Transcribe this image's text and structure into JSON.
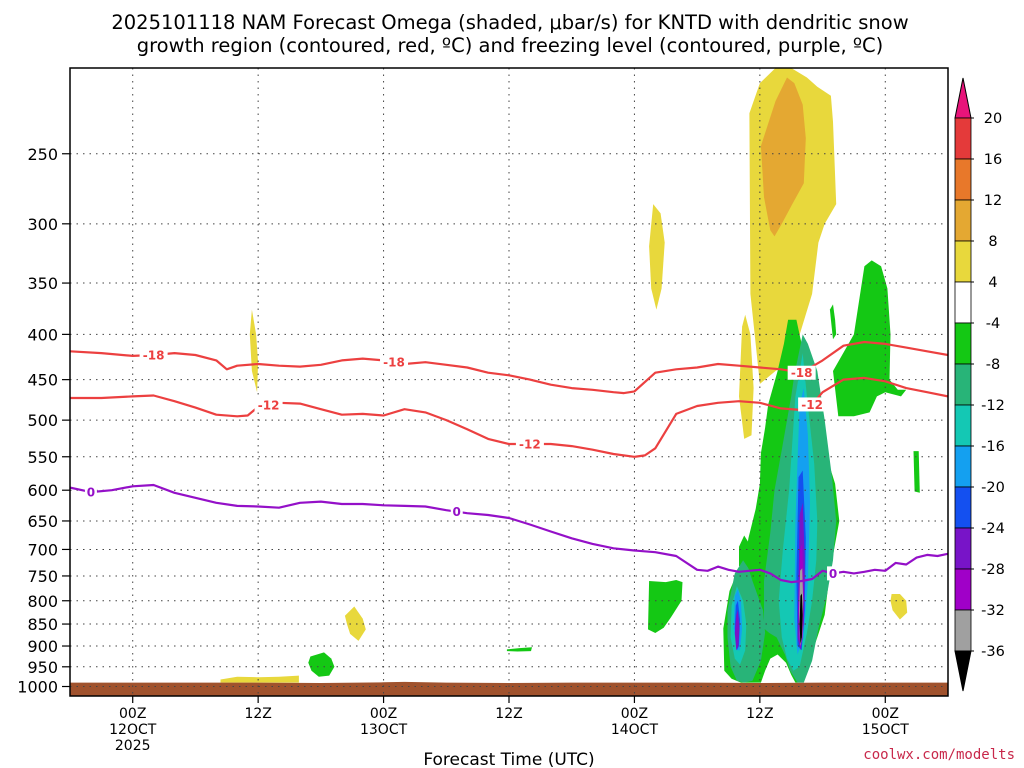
{
  "chart_data": {
    "type": "heatmap",
    "title_lines": [
      "2025101118 NAM Forecast Omega (shaded, μbar/s) for KNTD with dendritic snow",
      "growth region (contoured, red, ºC) and freezing level (contoured, purple, ºC)"
    ],
    "xlabel": "Forecast Time (UTC)",
    "ylabel": "",
    "credit": "coolwx.com/modelts",
    "x_axis": {
      "unit": "hours since 2025101118",
      "range": [
        0,
        84
      ],
      "ticks": [
        {
          "x": 6,
          "lines": [
            "00Z",
            "12OCT",
            "2025"
          ]
        },
        {
          "x": 18,
          "lines": [
            "12Z"
          ]
        },
        {
          "x": 30,
          "lines": [
            "00Z",
            "13OCT"
          ]
        },
        {
          "x": 42,
          "lines": [
            "12Z"
          ]
        },
        {
          "x": 54,
          "lines": [
            "00Z",
            "14OCT"
          ]
        },
        {
          "x": 66,
          "lines": [
            "12Z"
          ]
        },
        {
          "x": 78,
          "lines": [
            "00Z",
            "15OCT"
          ]
        }
      ]
    },
    "y_axis": {
      "unit": "hPa",
      "scale": "log",
      "range": [
        200,
        1025
      ],
      "ticks": [
        250,
        300,
        350,
        400,
        450,
        500,
        550,
        600,
        650,
        700,
        750,
        800,
        850,
        900,
        950,
        1000
      ],
      "gridlines": true
    },
    "colorbar": {
      "labels": [
        "20",
        "16",
        "12",
        "8",
        "4",
        "-4",
        "-8",
        "-12",
        "-16",
        "-20",
        "-24",
        "-28",
        "-32",
        "-36"
      ],
      "colors": [
        "#e8147a",
        "#e43a3a",
        "#e8782a",
        "#e4a832",
        "#e8d83c",
        "#ffffff",
        "#14c814",
        "#28b478",
        "#14c8b4",
        "#14a0f0",
        "#1450f0",
        "#7814c8",
        "#a000c8",
        "#a0a0a0",
        "#000000"
      ]
    },
    "series": [
      {
        "name": "-18 ºC isotherm",
        "label": "-18",
        "color": "#ec4040",
        "x": [
          0,
          3,
          6,
          8,
          10,
          12,
          14,
          15,
          16,
          18,
          20,
          22,
          24,
          26,
          28,
          30,
          32,
          34,
          36,
          38,
          40,
          42,
          44,
          46,
          48,
          50,
          52,
          53,
          54,
          56,
          58,
          60,
          62,
          64,
          66,
          68,
          70,
          72,
          74,
          76,
          78,
          80,
          82,
          84
        ],
        "y": [
          418,
          420,
          423,
          422,
          420,
          422,
          428,
          438,
          434,
          432,
          434,
          435,
          433,
          428,
          426,
          428,
          432,
          430,
          433,
          436,
          442,
          445,
          450,
          456,
          460,
          462,
          465,
          466,
          464,
          442,
          438,
          436,
          432,
          434,
          436,
          438,
          442,
          428,
          412,
          408,
          410,
          414,
          418,
          422
        ]
      },
      {
        "name": "-12 ºC isotherm",
        "label": "-12",
        "color": "#ec4040",
        "x": [
          0,
          3,
          6,
          8,
          10,
          12,
          14,
          16,
          17,
          18,
          20,
          22,
          24,
          26,
          28,
          30,
          32,
          34,
          36,
          38,
          40,
          42,
          44,
          46,
          48,
          50,
          52,
          54,
          55,
          56,
          58,
          60,
          62,
          64,
          66,
          68,
          70,
          71,
          72,
          74,
          76,
          78,
          80,
          82,
          84
        ],
        "y": [
          472,
          472,
          470,
          469,
          476,
          484,
          493,
          495,
          494,
          483,
          478,
          479,
          486,
          493,
          492,
          494,
          486,
          490,
          500,
          512,
          525,
          532,
          532,
          532,
          535,
          540,
          546,
          550,
          548,
          538,
          492,
          482,
          478,
          476,
          478,
          485,
          487,
          480,
          465,
          450,
          448,
          452,
          460,
          465,
          470
        ]
      },
      {
        "name": "0 ºC freezing level",
        "label": "0",
        "color": "#9410c8",
        "x": [
          0,
          2,
          4,
          6,
          8,
          10,
          12,
          14,
          16,
          18,
          20,
          22,
          24,
          26,
          28,
          30,
          32,
          34,
          36,
          38,
          40,
          42,
          44,
          46,
          48,
          50,
          52,
          54,
          56,
          58,
          60,
          61,
          62,
          63,
          64,
          65,
          66,
          67,
          68,
          69,
          70,
          71,
          72,
          73,
          74,
          75,
          76,
          77,
          78,
          79,
          80,
          81,
          82,
          83,
          84
        ],
        "y": [
          596,
          603,
          600,
          594,
          592,
          604,
          612,
          620,
          625,
          626,
          628,
          620,
          618,
          622,
          622,
          624,
          625,
          626,
          632,
          637,
          640,
          645,
          656,
          668,
          680,
          690,
          698,
          702,
          705,
          712,
          738,
          740,
          732,
          738,
          742,
          740,
          738,
          745,
          758,
          762,
          760,
          756,
          740,
          745,
          742,
          745,
          742,
          738,
          740,
          725,
          728,
          715,
          710,
          712,
          708
        ]
      }
    ],
    "omega_regions": [
      {
        "value": 4,
        "color": "#e8d83c",
        "x": [
          64.3,
          64.6,
          65.1,
          65.4,
          65.2,
          64.5,
          64.0
        ],
        "y": [
          392,
          380,
          400,
          460,
          520,
          525,
          470
        ]
      },
      {
        "value": 4,
        "color": "#e8d83c",
        "x": [
          17.2,
          17.4,
          17.8,
          18.0,
          17.9,
          17.4
        ],
        "y": [
          400,
          375,
          400,
          430,
          465,
          440
        ]
      },
      {
        "value": 4,
        "color": "#e8d83c",
        "x": [
          55.4,
          55.8,
          56.5,
          56.9,
          56.6,
          56.1,
          55.6
        ],
        "y": [
          318,
          285,
          292,
          315,
          355,
          375,
          355
        ]
      },
      {
        "value": 4,
        "color": "#e8d83c",
        "x": [
          65.0,
          66.0,
          67.5,
          69.0,
          70.5,
          71.5,
          72.8,
          73.0,
          73.3,
          72.2,
          71.6,
          71.0,
          69.0,
          67.5,
          66.0,
          65.1
        ],
        "y": [
          225,
          208,
          200,
          200,
          205,
          210,
          215,
          230,
          285,
          300,
          315,
          360,
          430,
          440,
          455,
          360
        ]
      },
      {
        "value": 4,
        "color": "#e8d83c",
        "x": [
          26.3,
          27.2,
          28.0,
          28.3,
          27.6,
          26.8,
          26.5
        ],
        "y": [
          832,
          812,
          838,
          862,
          888,
          872,
          850
        ]
      },
      {
        "value": 4,
        "color": "#e8d83c",
        "x": [
          14.4,
          16.0,
          18.0,
          20.0,
          21.9,
          21.9,
          18.0,
          16.0,
          14.4
        ],
        "y": [
          982,
          975,
          976,
          975,
          972,
          990,
          990,
          990,
          990
        ]
      },
      {
        "value": 4,
        "color": "#e8d83c",
        "x": [
          78.6,
          79.4,
          80.0,
          80.1,
          79.4,
          78.7,
          78.5
        ],
        "y": [
          786,
          786,
          800,
          825,
          840,
          820,
          800
        ]
      },
      {
        "value": 8,
        "color": "#e4a832",
        "x": [
          66.1,
          67.5,
          68.6,
          69.3,
          70.1,
          70.4,
          70.2,
          69.1,
          68.1,
          67.4,
          67.0,
          66.4
        ],
        "y": [
          245,
          218,
          205,
          208,
          220,
          240,
          270,
          285,
          300,
          310,
          305,
          280
        ]
      },
      {
        "value": -4,
        "color": "#14c814",
        "x": [
          76.0,
          76.7,
          77.6,
          78.2,
          78.5,
          78.4,
          79.2,
          80.0,
          79.5,
          78.0,
          77.2,
          76.5,
          75.0,
          73.5,
          73.0,
          75.0,
          76.0
        ],
        "y": [
          335,
          330,
          335,
          355,
          400,
          450,
          462,
          462,
          470,
          465,
          470,
          490,
          495,
          495,
          440,
          400,
          335
        ]
      },
      {
        "value": -4,
        "color": "#14c814",
        "x": [
          72.7,
          73.0,
          73.2,
          73.3,
          73.0,
          72.8
        ],
        "y": [
          375,
          370,
          385,
          400,
          405,
          385
        ]
      },
      {
        "value": -4,
        "color": "#14c814",
        "x": [
          66.8,
          67.7,
          68.3,
          68.7,
          69.5,
          69.9,
          70.5,
          71.0,
          72.0,
          72.5,
          73.2,
          73.6,
          73.1,
          72.6,
          72.2,
          71.5,
          70.8,
          70.3,
          69.6,
          69.4,
          69.0,
          68.5,
          67.7,
          67.0,
          66.5,
          66.1,
          65.6,
          64.9,
          64.2,
          63.3,
          62.6,
          62.5,
          63.1,
          63.8,
          64.6,
          64.9,
          65.6,
          66.0,
          66.1,
          66.5
        ],
        "y": [
          480,
          440,
          410,
          385,
          385,
          405,
          430,
          470,
          520,
          555,
          590,
          650,
          700,
          760,
          830,
          880,
          930,
          980,
          990,
          990,
          970,
          940,
          920,
          930,
          960,
          990,
          990,
          990,
          990,
          980,
          960,
          860,
          780,
          745,
          720,
          680,
          630,
          590,
          545,
          510
        ]
      },
      {
        "value": -4,
        "color": "#14c814",
        "x": [
          55.4,
          57.0,
          58.0,
          58.6,
          58.5,
          57.5,
          56.8,
          56.0,
          55.3
        ],
        "y": [
          760,
          762,
          758,
          762,
          800,
          835,
          858,
          870,
          862
        ]
      },
      {
        "value": -4,
        "color": "#14c814",
        "x": [
          64.0,
          64.5,
          65.0,
          65.4,
          65.3,
          64.6,
          64.0
        ],
        "y": [
          695,
          675,
          690,
          720,
          745,
          750,
          730
        ]
      },
      {
        "value": -4,
        "color": "#14c814",
        "x": [
          23.0,
          24.3,
          25.0,
          25.3,
          24.8,
          23.8,
          23.1,
          22.8
        ],
        "y": [
          925,
          915,
          930,
          950,
          972,
          975,
          960,
          940
        ]
      },
      {
        "value": -4,
        "color": "#14c814",
        "x": [
          41.8,
          43.0,
          44.2,
          44.1,
          42.8,
          41.8
        ],
        "y": [
          908,
          905,
          903,
          912,
          913,
          912
        ]
      },
      {
        "value": -4,
        "color": "#14c814",
        "x": [
          80.7,
          81.2,
          81.3,
          80.8
        ],
        "y": [
          542,
          542,
          604,
          602
        ]
      },
      {
        "value": -8,
        "color": "#28b478",
        "x": [
          69.3,
          70.1,
          70.6,
          71.5,
          72.2,
          72.9,
          73.3,
          73.0,
          72.4,
          71.6,
          71.0,
          70.2,
          69.6,
          68.9,
          68.4,
          67.6,
          66.9,
          66.4,
          66.4,
          67.0,
          67.4,
          68.1,
          68.6,
          69.0
        ],
        "y": [
          445,
          400,
          410,
          440,
          500,
          580,
          650,
          720,
          790,
          860,
          935,
          990,
          990,
          960,
          920,
          880,
          870,
          860,
          760,
          670,
          600,
          540,
          500,
          470
        ]
      },
      {
        "value": -8,
        "color": "#28b478",
        "x": [
          62.9,
          63.6,
          64.4,
          64.9,
          65.3,
          65.8,
          66.3,
          66.5,
          66.1,
          65.3,
          64.5,
          63.8,
          63.2,
          62.9
        ],
        "y": [
          820,
          745,
          720,
          735,
          760,
          790,
          820,
          870,
          935,
          985,
          990,
          985,
          950,
          880
        ]
      },
      {
        "value": -12,
        "color": "#14c8b4",
        "x": [
          69.4,
          70.1,
          70.5,
          71.2,
          71.5,
          71.4,
          71.0,
          70.5,
          69.8,
          69.2,
          68.6,
          68.1,
          67.8,
          68.2,
          68.8
        ],
        "y": [
          470,
          420,
          470,
          560,
          650,
          720,
          800,
          870,
          950,
          960,
          930,
          880,
          800,
          700,
          600
        ]
      },
      {
        "value": -12,
        "color": "#14c8b4",
        "x": [
          63.3,
          63.8,
          64.4,
          64.7,
          64.6,
          64.1,
          63.6,
          63.2
        ],
        "y": [
          810,
          770,
          800,
          850,
          910,
          945,
          930,
          880
        ]
      },
      {
        "value": -16,
        "color": "#14a0f0",
        "x": [
          69.8,
          70.2,
          70.6,
          70.8,
          70.6,
          70.2,
          69.6,
          69.3,
          69.4
        ],
        "y": [
          480,
          460,
          520,
          620,
          760,
          880,
          920,
          840,
          650
        ]
      },
      {
        "value": -16,
        "color": "#14a0f0",
        "x": [
          63.6,
          63.9,
          64.2,
          64.3,
          64.1,
          63.8,
          63.5
        ],
        "y": [
          790,
          775,
          800,
          860,
          910,
          910,
          860
        ]
      },
      {
        "value": -20,
        "color": "#1450f0",
        "x": [
          69.7,
          70.1,
          70.4,
          70.3,
          70.0,
          69.6,
          69.5
        ],
        "y": [
          580,
          570,
          680,
          820,
          910,
          900,
          750
        ]
      },
      {
        "value": -20,
        "color": "#1450f0",
        "x": [
          63.7,
          63.9,
          64.1,
          64.0,
          63.8,
          63.6
        ],
        "y": [
          810,
          800,
          840,
          900,
          910,
          860
        ]
      },
      {
        "value": -24,
        "color": "#7814c8",
        "x": [
          69.8,
          70.1,
          70.3,
          70.2,
          69.9,
          69.6,
          69.7
        ],
        "y": [
          640,
          620,
          720,
          850,
          910,
          880,
          760
        ]
      },
      {
        "value": -24,
        "color": "#7814c8",
        "x": [
          63.75,
          63.9,
          64.05,
          63.95,
          63.75,
          63.6
        ],
        "y": [
          830,
          820,
          860,
          900,
          910,
          870
        ]
      },
      {
        "value": -28,
        "color": "#a000c8",
        "x": [
          69.85,
          70.05,
          70.2,
          70.1,
          69.85,
          69.7
        ],
        "y": [
          700,
          690,
          780,
          880,
          905,
          820
        ]
      },
      {
        "value": -32,
        "color": "#a0a0a0",
        "x": [
          69.85,
          70.05,
          70.15,
          70.05,
          69.85,
          69.75
        ],
        "y": [
          740,
          735,
          800,
          880,
          900,
          830
        ]
      },
      {
        "value": -36,
        "color": "#000000",
        "x": [
          69.88,
          70.02,
          70.1,
          70.02,
          69.88,
          69.8
        ],
        "y": [
          790,
          785,
          830,
          880,
          895,
          850
        ]
      }
    ],
    "terrain": {
      "color": "#a0522d",
      "x": [
        0,
        8,
        16,
        24,
        30,
        32,
        36,
        42,
        48,
        54,
        60,
        66,
        72,
        78,
        84
      ],
      "y": [
        990,
        990,
        990,
        991,
        989,
        988,
        990,
        991,
        990,
        990,
        990,
        991,
        990,
        990,
        990
      ]
    }
  }
}
